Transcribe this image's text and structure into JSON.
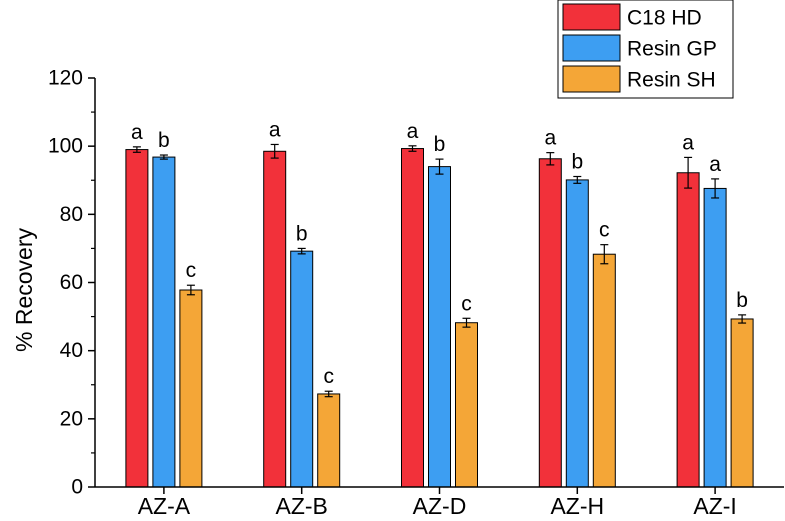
{
  "chart_data": {
    "type": "bar",
    "title": "",
    "xlabel": "",
    "ylabel": "% Recovery",
    "ylim": [
      0,
      120
    ],
    "yticks": [
      0,
      20,
      40,
      60,
      80,
      100,
      120
    ],
    "categories": [
      "AZ-A",
      "AZ-B",
      "AZ-D",
      "AZ-H",
      "AZ-I"
    ],
    "legend_position": "top-right",
    "series": [
      {
        "name": "C18 HD",
        "color": "#f2313a",
        "values": [
          99,
          98.5,
          99.3,
          96.3,
          92.2
        ],
        "errors": [
          0.8,
          2.0,
          0.8,
          1.8,
          4.5
        ],
        "letters": [
          "a",
          "a",
          "a",
          "a",
          "a"
        ]
      },
      {
        "name": "Resin GP",
        "color": "#3d9ef2",
        "values": [
          96.8,
          69.2,
          94.0,
          90.1,
          87.6
        ],
        "errors": [
          0.6,
          0.8,
          2.2,
          1.0,
          2.8
        ],
        "letters": [
          "b",
          "b",
          "b",
          "b",
          "a"
        ]
      },
      {
        "name": "Resin SH",
        "color": "#f4a637",
        "values": [
          57.8,
          27.3,
          48.2,
          68.3,
          49.3
        ],
        "errors": [
          1.4,
          0.8,
          1.3,
          2.8,
          1.2
        ],
        "letters": [
          "c",
          "c",
          "c",
          "c",
          "b"
        ]
      }
    ]
  }
}
